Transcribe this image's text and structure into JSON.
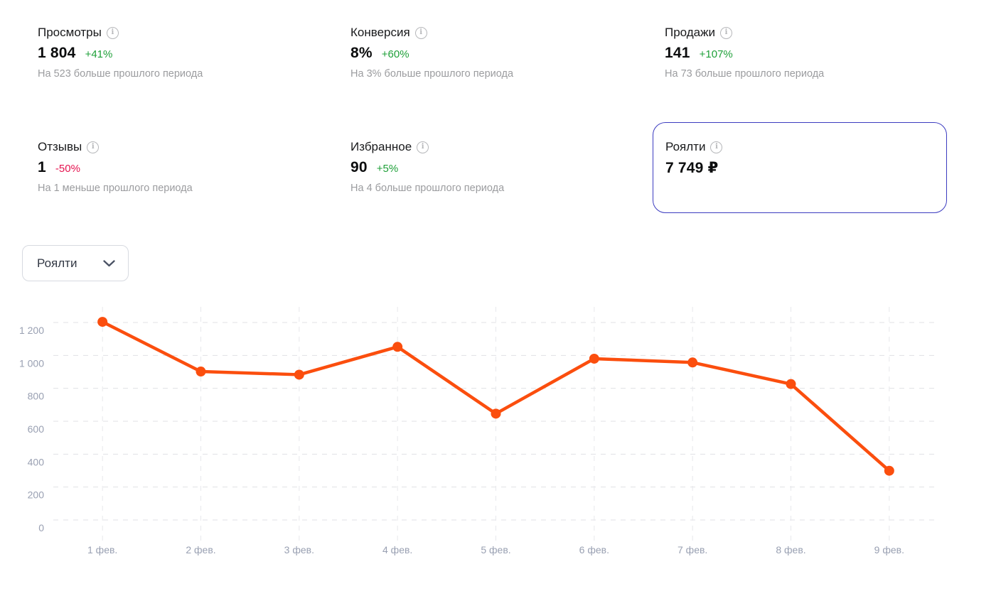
{
  "colors": {
    "accent_orange": "#fb4e0e",
    "positive_green": "#1fa039",
    "negative_red": "#e5134f",
    "highlight_border_indigo": "#3c3cc0",
    "muted_text": "#9b9c9f",
    "axis_text": "#99a0b2"
  },
  "stats": {
    "cards": [
      {
        "title": "Просмотры",
        "value": "1 804",
        "delta": "+41%",
        "delta_direction": "up",
        "subtext": "На 523 больше прошлого периода"
      },
      {
        "title": "Конверсия",
        "value": "8%",
        "delta": "+60%",
        "delta_direction": "up",
        "subtext": "На 3% больше прошлого периода"
      },
      {
        "title": "Продажи",
        "value": "141",
        "delta": "+107%",
        "delta_direction": "up",
        "subtext": "На 73 больше прошлого периода"
      },
      {
        "title": "Отзывы",
        "value": "1",
        "delta": "-50%",
        "delta_direction": "down",
        "subtext": "На 1 меньше прошлого периода"
      },
      {
        "title": "Избранное",
        "value": "90",
        "delta": "+5%",
        "delta_direction": "up",
        "subtext": "На 4 больше прошлого периода"
      },
      {
        "title": "Роялти",
        "value": "7 749 ₽",
        "highlighted": true
      }
    ]
  },
  "metric_selector": {
    "label": "Роялти",
    "icon": "chevron-down-icon"
  },
  "chart_data": {
    "type": "line",
    "categories": [
      "1 фев.",
      "2 фев.",
      "3 фев.",
      "4 фев.",
      "5 фев.",
      "6 фев.",
      "7 фев.",
      "8 фев.",
      "9 фев."
    ],
    "series": [
      {
        "name": "Роялти",
        "values": [
          1204,
          902,
          883,
          1052,
          646,
          980,
          957,
          826,
          299
        ]
      }
    ],
    "ylim": [
      0,
      1200
    ],
    "y_ticks": [
      0,
      200,
      400,
      600,
      800,
      1000,
      1200
    ],
    "y_tick_labels": [
      "0",
      "200",
      "400",
      "600",
      "800",
      "1 000",
      "1 200"
    ],
    "xlabel": "",
    "ylabel": "",
    "grid": "dashed",
    "legend": "none",
    "line_color": "#fb4e0e",
    "point_color": "#fb4e0e"
  }
}
